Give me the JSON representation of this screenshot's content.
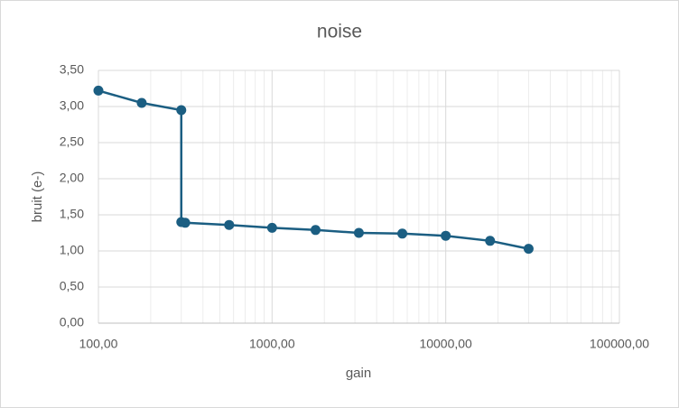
{
  "chart_data": {
    "type": "line",
    "title": "noise",
    "x_label": "gain",
    "y_label": "bruit (e-)",
    "x": [
      100,
      177.5,
      300,
      300,
      316,
      566,
      1000,
      1780,
      3160,
      5620,
      10000,
      18000,
      30000
    ],
    "series": [
      {
        "name": "noise",
        "color": "#1b5e82",
        "values": [
          3.22,
          3.05,
          2.95,
          1.4,
          1.39,
          1.36,
          1.32,
          1.29,
          1.25,
          1.24,
          1.21,
          1.14,
          1.03
        ]
      }
    ],
    "xlim": [
      100,
      100000
    ],
    "xscale": "log",
    "xticks": [
      {
        "value": 100,
        "label": "100,00"
      },
      {
        "value": 1000,
        "label": "1000,00"
      },
      {
        "value": 10000,
        "label": "10000,00"
      },
      {
        "value": 100000,
        "label": "100000,00"
      }
    ],
    "ylim": [
      0,
      3.5
    ],
    "yticks": [
      {
        "value": 0,
        "label": "0,00"
      },
      {
        "value": 0.5,
        "label": "0,50"
      },
      {
        "value": 1,
        "label": "1,00"
      },
      {
        "value": 1.5,
        "label": "1,50"
      },
      {
        "value": 2,
        "label": "2,00"
      },
      {
        "value": 2.5,
        "label": "2,50"
      },
      {
        "value": 3,
        "label": "3,00"
      },
      {
        "value": 3.5,
        "label": "3,50"
      }
    ],
    "grid": true
  }
}
